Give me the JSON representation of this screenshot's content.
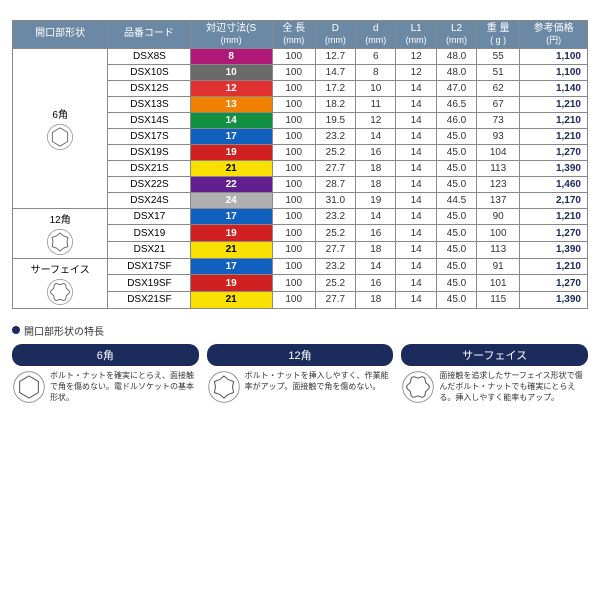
{
  "columns": [
    {
      "label": "開口部形状",
      "unit": ""
    },
    {
      "label": "品番コード",
      "unit": ""
    },
    {
      "label": "対辺寸法(S",
      "unit": "(mm)"
    },
    {
      "label": "全 長",
      "unit": "(mm)"
    },
    {
      "label": "D",
      "unit": "(mm)"
    },
    {
      "label": "d",
      "unit": "(mm)"
    },
    {
      "label": "L1",
      "unit": "(mm)"
    },
    {
      "label": "L2",
      "unit": "(mm)"
    },
    {
      "label": "重 量",
      "unit": "( g )"
    },
    {
      "label": "参考価格",
      "unit": "(円)"
    }
  ],
  "groups": [
    {
      "shape_label": "6角",
      "shape": "hex",
      "rows": [
        {
          "code": "DSX8S",
          "size": "8",
          "size_bg": "#b01878",
          "len": "100",
          "D": "12.7",
          "d": "6",
          "L1": "12",
          "L2": "48.0",
          "wt": "55",
          "price": "1,100"
        },
        {
          "code": "DSX10S",
          "size": "10",
          "size_bg": "#6a6a6a",
          "len": "100",
          "D": "14.7",
          "d": "8",
          "L1": "12",
          "L2": "48.0",
          "wt": "51",
          "price": "1,100"
        },
        {
          "code": "DSX12S",
          "size": "12",
          "size_bg": "#e03030",
          "len": "100",
          "D": "17.2",
          "d": "10",
          "L1": "14",
          "L2": "47.0",
          "wt": "62",
          "price": "1,140"
        },
        {
          "code": "DSX13S",
          "size": "13",
          "size_bg": "#f08000",
          "len": "100",
          "D": "18.2",
          "d": "11",
          "L1": "14",
          "L2": "46.5",
          "wt": "67",
          "price": "1,210"
        },
        {
          "code": "DSX14S",
          "size": "14",
          "size_bg": "#109040",
          "len": "100",
          "D": "19.5",
          "d": "12",
          "L1": "14",
          "L2": "46.0",
          "wt": "73",
          "price": "1,210"
        },
        {
          "code": "DSX17S",
          "size": "17",
          "size_bg": "#1060c0",
          "len": "100",
          "D": "23.2",
          "d": "14",
          "L1": "14",
          "L2": "45.0",
          "wt": "93",
          "price": "1,210"
        },
        {
          "code": "DSX19S",
          "size": "19",
          "size_bg": "#d02020",
          "len": "100",
          "D": "25.2",
          "d": "16",
          "L1": "14",
          "L2": "45.0",
          "wt": "104",
          "price": "1,270"
        },
        {
          "code": "DSX21S",
          "size": "21",
          "size_bg": "#f8e000",
          "size_fg": "#000",
          "len": "100",
          "D": "27.7",
          "d": "18",
          "L1": "14",
          "L2": "45.0",
          "wt": "113",
          "price": "1,390"
        },
        {
          "code": "DSX22S",
          "size": "22",
          "size_bg": "#602090",
          "len": "100",
          "D": "28.7",
          "d": "18",
          "L1": "14",
          "L2": "45.0",
          "wt": "123",
          "price": "1,460"
        },
        {
          "code": "DSX24S",
          "size": "24",
          "size_bg": "#b0b0b0",
          "len": "100",
          "D": "31.0",
          "d": "19",
          "L1": "14",
          "L2": "44.5",
          "wt": "137",
          "price": "2,170"
        }
      ]
    },
    {
      "shape_label": "12角",
      "shape": "twelve",
      "rows": [
        {
          "code": "DSX17",
          "size": "17",
          "size_bg": "#1060c0",
          "len": "100",
          "D": "23.2",
          "d": "14",
          "L1": "14",
          "L2": "45.0",
          "wt": "90",
          "price": "1,210"
        },
        {
          "code": "DSX19",
          "size": "19",
          "size_bg": "#d02020",
          "len": "100",
          "D": "25.2",
          "d": "16",
          "L1": "14",
          "L2": "45.0",
          "wt": "100",
          "price": "1,270"
        },
        {
          "code": "DSX21",
          "size": "21",
          "size_bg": "#f8e000",
          "size_fg": "#000",
          "len": "100",
          "D": "27.7",
          "d": "18",
          "L1": "14",
          "L2": "45.0",
          "wt": "113",
          "price": "1,390"
        }
      ]
    },
    {
      "shape_label": "サーフェイス",
      "shape": "surface",
      "rows": [
        {
          "code": "DSX17SF",
          "size": "17",
          "size_bg": "#1060c0",
          "len": "100",
          "D": "23.2",
          "d": "14",
          "L1": "14",
          "L2": "45.0",
          "wt": "91",
          "price": "1,210"
        },
        {
          "code": "DSX19SF",
          "size": "19",
          "size_bg": "#d02020",
          "len": "100",
          "D": "25.2",
          "d": "16",
          "L1": "14",
          "L2": "45.0",
          "wt": "101",
          "price": "1,270"
        },
        {
          "code": "DSX21SF",
          "size": "21",
          "size_bg": "#f8e000",
          "size_fg": "#000",
          "len": "100",
          "D": "27.7",
          "d": "18",
          "L1": "14",
          "L2": "45.0",
          "wt": "115",
          "price": "1,390"
        }
      ]
    }
  ],
  "feature_heading": "開口部形状の特長",
  "features": [
    {
      "title": "6角",
      "shape": "hex",
      "text": "ボルト・ナットを確実にとらえ、面接触で角を傷めない。電ドルソケットの基本形状。"
    },
    {
      "title": "12角",
      "shape": "twelve",
      "text": "ボルト・ナットを挿入しやすく、作業能率がアップ。面接触で角を傷めない。"
    },
    {
      "title": "サーフェイス",
      "shape": "surface",
      "text": "面接触を追求したサーフェイス形状で傷んだボルト・ナットでも確実にとらえる。挿入しやすく能率もアップ。"
    }
  ]
}
